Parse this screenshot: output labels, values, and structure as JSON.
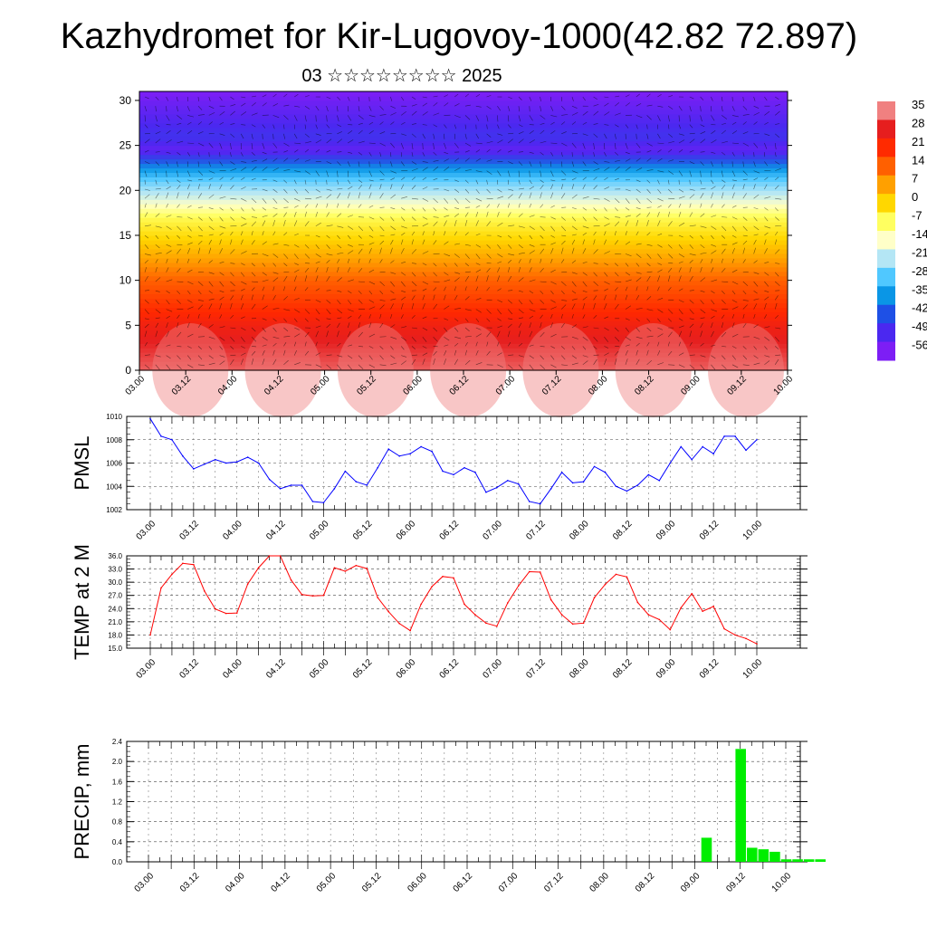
{
  "title": "Kazhydromet for Kir-Lugovoy-1000(42.82 72.897)",
  "subtitle": "03 ☆☆☆☆☆☆☆☆ 2025",
  "time_labels": [
    "03.00",
    "03.12",
    "04.00",
    "04.12",
    "05.00",
    "05.12",
    "06.00",
    "06.12",
    "07.00",
    "07.12",
    "08.00",
    "08.12",
    "09.00",
    "09.12",
    "10.00"
  ],
  "colorbar": {
    "labels": [
      "35",
      "28",
      "21",
      "14",
      "7",
      "0",
      "-7",
      "-14",
      "-21",
      "-28",
      "-35",
      "-42",
      "-49",
      "-56"
    ],
    "colors": [
      "#f08080",
      "#e61e1e",
      "#ff2a00",
      "#ff6000",
      "#ffa000",
      "#ffd700",
      "#ffff60",
      "#ffffc8",
      "#b4e6f5",
      "#50c8ff",
      "#0a96e6",
      "#1e50e6",
      "#4b28f0",
      "#7d1ef5"
    ]
  },
  "chart_data": [
    {
      "type": "heatmap",
      "name": "cross-section",
      "x_start": "03.00",
      "x_end": "10.00",
      "x_step_hours": 3,
      "ylim": [
        0,
        31
      ],
      "yticks": [
        0,
        5,
        10,
        15,
        20,
        25,
        30
      ],
      "ylabel": "",
      "level_temperature_c": [
        {
          "level": 0,
          "value": 30
        },
        {
          "level": 5,
          "value": 24
        },
        {
          "level": 10,
          "value": 14
        },
        {
          "level": 12,
          "value": 8
        },
        {
          "level": 15,
          "value": -1
        },
        {
          "level": 17,
          "value": -7
        },
        {
          "level": 19,
          "value": -18
        },
        {
          "level": 21,
          "value": -28
        },
        {
          "level": 23,
          "value": -42
        },
        {
          "level": 24.5,
          "value": -55
        },
        {
          "level": 26,
          "value": -50
        },
        {
          "level": 31,
          "value": -58
        }
      ]
    },
    {
      "type": "line",
      "name": "PMSL",
      "ylabel": "PMSL",
      "ylim": [
        1002,
        1010
      ],
      "yticks": [
        1002,
        1004,
        1006,
        1008,
        1010
      ],
      "x_step_hours": 3,
      "color": "#0000ff",
      "values": [
        1009.8,
        1008.3,
        1008.0,
        1006.6,
        1005.5,
        1005.9,
        1006.3,
        1006.0,
        1006.1,
        1006.5,
        1006.0,
        1004.6,
        1003.8,
        1004.1,
        1004.1,
        1002.7,
        1002.6,
        1003.8,
        1005.3,
        1004.4,
        1004.1,
        1005.6,
        1007.2,
        1006.6,
        1006.8,
        1007.4,
        1007.0,
        1005.3,
        1005.0,
        1005.6,
        1005.2,
        1003.5,
        1003.9,
        1004.5,
        1004.2,
        1002.7,
        1002.5,
        1003.8,
        1005.2,
        1004.3,
        1004.4,
        1005.7,
        1005.2,
        1004.0,
        1003.6,
        1004.1,
        1005.0,
        1004.5,
        1006.0,
        1007.4,
        1006.3,
        1007.4,
        1006.8,
        1008.3,
        1008.3,
        1007.1,
        1008.0
      ]
    },
    {
      "type": "line",
      "name": "TEMP at 2 M",
      "ylabel": "TEMP at 2 M",
      "ylim": [
        15.0,
        36.0
      ],
      "yticks": [
        15.0,
        18.0,
        21.0,
        24.0,
        27.0,
        30.0,
        33.0,
        36.0
      ],
      "x_step_hours": 3,
      "color": "#ff0000",
      "values": [
        18.0,
        28.7,
        31.8,
        34.3,
        34.0,
        28.0,
        23.9,
        22.9,
        23.0,
        29.6,
        33.3,
        36.0,
        36.0,
        30.5,
        27.2,
        26.9,
        27.0,
        33.3,
        32.5,
        33.8,
        33.1,
        26.5,
        23.3,
        20.6,
        19.0,
        25.0,
        29.0,
        31.3,
        31.0,
        25.0,
        22.6,
        20.7,
        20.0,
        25.3,
        29.2,
        32.4,
        32.3,
        26.0,
        22.6,
        20.5,
        20.7,
        26.5,
        29.5,
        31.8,
        31.2,
        25.4,
        22.6,
        21.5,
        19.2,
        24.2,
        27.4,
        23.4,
        24.5,
        19.4,
        18.0,
        17.2,
        16.0
      ]
    },
    {
      "type": "bar",
      "name": "PRECIP, mm",
      "ylabel": "PRECIP, mm",
      "ylim": [
        0.0,
        2.4
      ],
      "yticks": [
        0.0,
        0.4,
        0.8,
        1.2,
        1.6,
        2.0,
        2.4
      ],
      "x_step_hours": 3,
      "color": "#00ee00",
      "bars": [
        {
          "step": 49,
          "value": 0.48
        },
        {
          "step": 52,
          "value": 2.25
        },
        {
          "step": 53,
          "value": 0.28
        },
        {
          "step": 54,
          "value": 0.25
        },
        {
          "step": 55,
          "value": 0.2
        },
        {
          "step": 56,
          "value": 0.05
        },
        {
          "step": 57,
          "value": 0.05
        },
        {
          "step": 58,
          "value": 0.05
        },
        {
          "step": 59,
          "value": 0.05
        }
      ]
    }
  ]
}
